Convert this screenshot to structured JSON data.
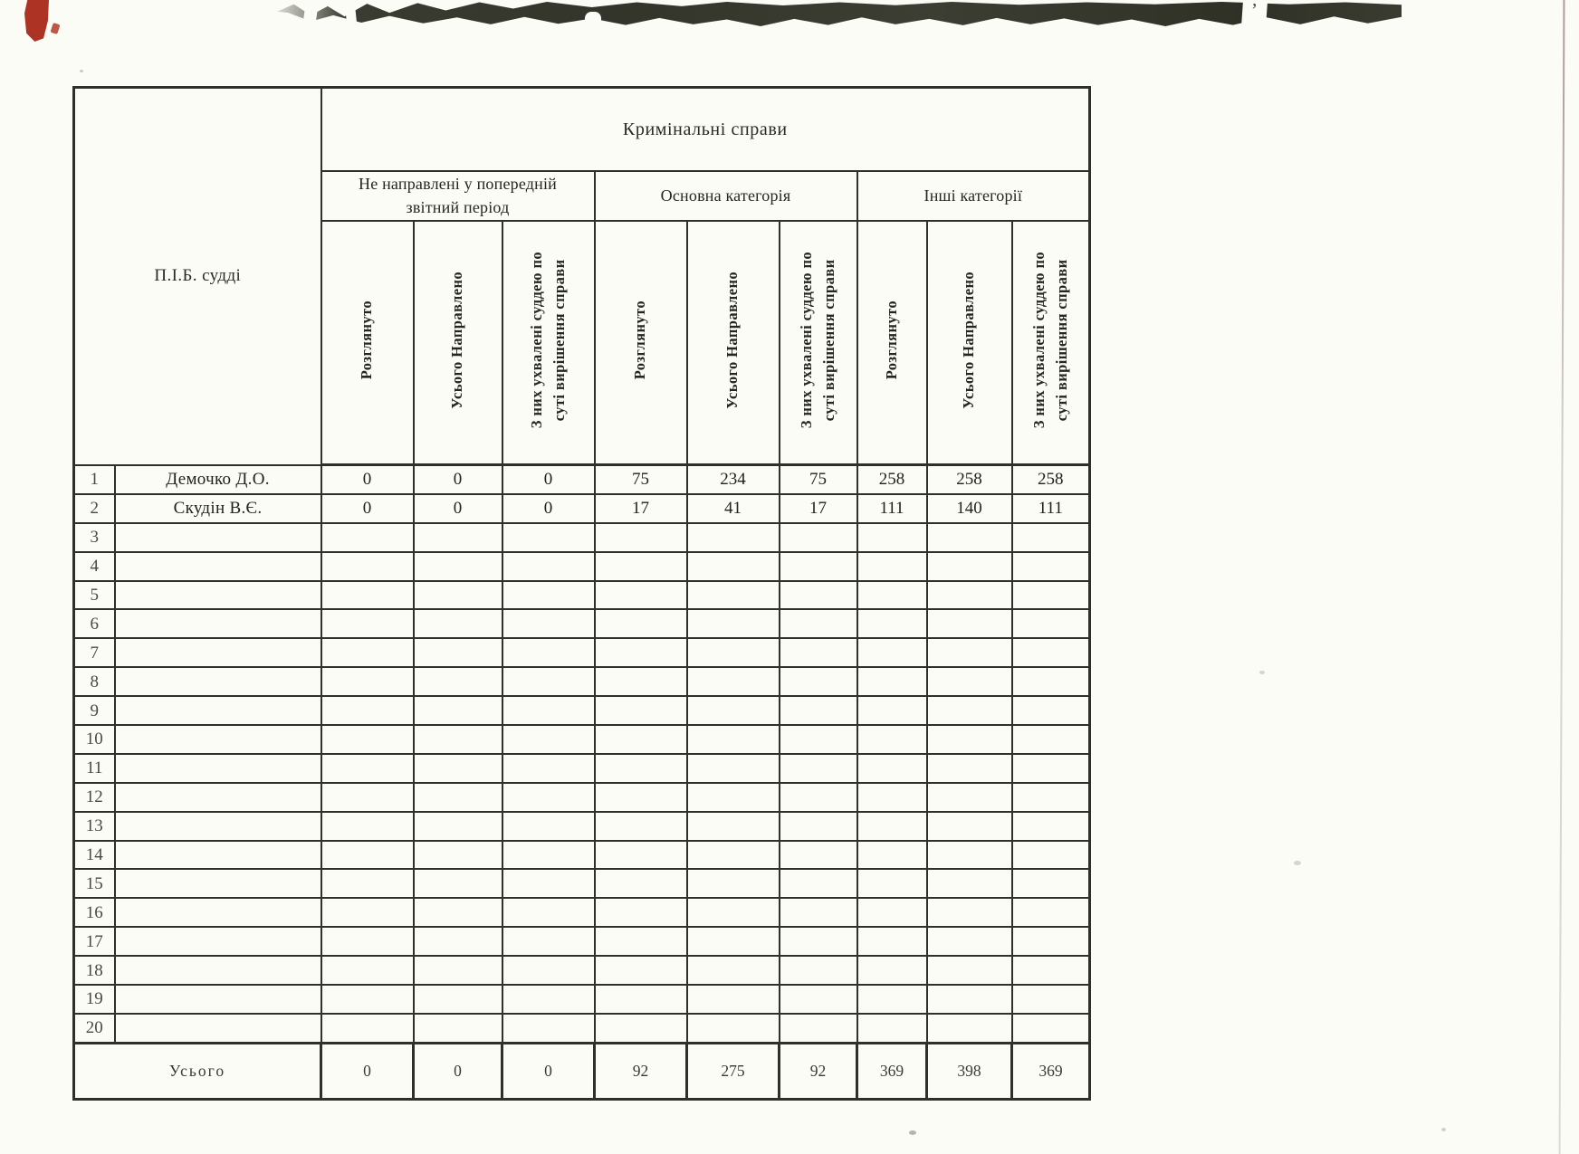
{
  "page": {
    "paper_color": "#fcfcf6",
    "ink_color": "#30302a",
    "scan_band_color": "#3a3c31",
    "red_mark_color": "#ad3425"
  },
  "artifacts": {
    "apostrophe_mark": "’"
  },
  "table": {
    "title": "Кримінальні справи",
    "judge_col_header": "П.І.Б. судді",
    "groups": [
      {
        "label": "Не направлені у попередній\nзвітний період"
      },
      {
        "label": "Основна категорія"
      },
      {
        "label": "Інші категорії"
      }
    ],
    "columns": [
      "Розглянуто",
      "Усього Направлено",
      "З них ухвалені суддею по\nсуті вирішення справи",
      "Розглянуто",
      "Усього Направлено",
      "З них ухвалені суддею по\nсуті вирішення справи",
      "Розглянуто",
      "Усього Направлено",
      "З них ухвалені суддею по\nсуті вирішення справи"
    ],
    "rows": [
      {
        "num": "1",
        "name": "Демочко Д.О.",
        "values": [
          "0",
          "0",
          "0",
          "75",
          "234",
          "75",
          "258",
          "258",
          "258"
        ]
      },
      {
        "num": "2",
        "name": "Скудін В.Є.",
        "values": [
          "0",
          "0",
          "0",
          "17",
          "41",
          "17",
          "111",
          "140",
          "111"
        ]
      },
      {
        "num": "3",
        "name": "",
        "values": [
          "",
          "",
          "",
          "",
          "",
          "",
          "",
          "",
          ""
        ]
      },
      {
        "num": "4",
        "name": "",
        "values": [
          "",
          "",
          "",
          "",
          "",
          "",
          "",
          "",
          ""
        ]
      },
      {
        "num": "5",
        "name": "",
        "values": [
          "",
          "",
          "",
          "",
          "",
          "",
          "",
          "",
          ""
        ]
      },
      {
        "num": "6",
        "name": "",
        "values": [
          "",
          "",
          "",
          "",
          "",
          "",
          "",
          "",
          ""
        ]
      },
      {
        "num": "7",
        "name": "",
        "values": [
          "",
          "",
          "",
          "",
          "",
          "",
          "",
          "",
          ""
        ]
      },
      {
        "num": "8",
        "name": "",
        "values": [
          "",
          "",
          "",
          "",
          "",
          "",
          "",
          "",
          ""
        ]
      },
      {
        "num": "9",
        "name": "",
        "values": [
          "",
          "",
          "",
          "",
          "",
          "",
          "",
          "",
          ""
        ]
      },
      {
        "num": "10",
        "name": "",
        "values": [
          "",
          "",
          "",
          "",
          "",
          "",
          "",
          "",
          ""
        ]
      },
      {
        "num": "11",
        "name": "",
        "values": [
          "",
          "",
          "",
          "",
          "",
          "",
          "",
          "",
          ""
        ]
      },
      {
        "num": "12",
        "name": "",
        "values": [
          "",
          "",
          "",
          "",
          "",
          "",
          "",
          "",
          ""
        ]
      },
      {
        "num": "13",
        "name": "",
        "values": [
          "",
          "",
          "",
          "",
          "",
          "",
          "",
          "",
          ""
        ]
      },
      {
        "num": "14",
        "name": "",
        "values": [
          "",
          "",
          "",
          "",
          "",
          "",
          "",
          "",
          ""
        ]
      },
      {
        "num": "15",
        "name": "",
        "values": [
          "",
          "",
          "",
          "",
          "",
          "",
          "",
          "",
          ""
        ]
      },
      {
        "num": "16",
        "name": "",
        "values": [
          "",
          "",
          "",
          "",
          "",
          "",
          "",
          "",
          ""
        ]
      },
      {
        "num": "17",
        "name": "",
        "values": [
          "",
          "",
          "",
          "",
          "",
          "",
          "",
          "",
          ""
        ]
      },
      {
        "num": "18",
        "name": "",
        "values": [
          "",
          "",
          "",
          "",
          "",
          "",
          "",
          "",
          ""
        ]
      },
      {
        "num": "19",
        "name": "",
        "values": [
          "",
          "",
          "",
          "",
          "",
          "",
          "",
          "",
          ""
        ]
      },
      {
        "num": "20",
        "name": "",
        "values": [
          "",
          "",
          "",
          "",
          "",
          "",
          "",
          "",
          ""
        ]
      }
    ],
    "total": {
      "label": "Усього",
      "values": [
        "0",
        "0",
        "0",
        "92",
        "275",
        "92",
        "369",
        "398",
        "369"
      ]
    }
  }
}
